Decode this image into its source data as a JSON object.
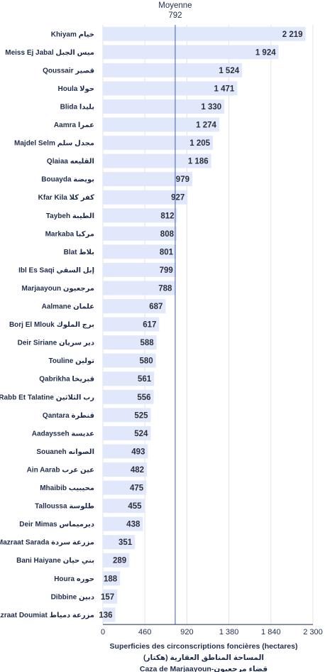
{
  "chart_data": {
    "type": "bar",
    "orientation": "horizontal",
    "categories": [
      "Khiyam خيام",
      "Meiss Ej Jabal ميس الجبل",
      "Qoussair قصير",
      "Houla حولا",
      "Blida بليدا",
      "Aamra عمرا",
      "Majdel Selm مجدل سلم",
      "Qlaiaa القليعه",
      "Bouayda بويضة",
      "Kfar Kila كفر كلا",
      "Taybeh الطيبة",
      "Markaba مركبا",
      "Blat بلاط",
      "Ibl Es Saqi إبل السقي",
      "Marjaayoun مرجعيون",
      "Aalmane علمان",
      "Borj El Mlouk برج الملوك",
      "Deir Siriane دير سريان",
      "Touline تولين",
      "Qabrikha قبريخا",
      "Rabb Et Talatine رب الثلاثين",
      "Qantara قنطرة",
      "Aadaysseh عديسة",
      "Souaneh الصوانه",
      "Ain Aarab عين عرب",
      "Mhaibib محيبيب",
      "Talloussa طلوسة",
      "Deir Mimas ديرميماس",
      "Mazraat Sarada مزرعة سردة",
      "Bani Haiyane بني حيان",
      "Houra حوره",
      "Dibbine دبين",
      "Mazraat Doumiat مزرعة دمياط"
    ],
    "values": [
      2219,
      1924,
      1524,
      1471,
      1330,
      1274,
      1205,
      1186,
      979,
      927,
      812,
      808,
      801,
      799,
      788,
      687,
      617,
      588,
      580,
      561,
      556,
      525,
      524,
      493,
      482,
      475,
      455,
      438,
      351,
      289,
      188,
      157,
      136
    ],
    "value_labels": [
      "2 219",
      "1 924",
      "1 524",
      "1 471",
      "1 330",
      "1 274",
      "1 205",
      "1 186",
      "979",
      "927",
      "812",
      "808",
      "801",
      "799",
      "788",
      "687",
      "617",
      "588",
      "580",
      "561",
      "556",
      "525",
      "524",
      "493",
      "482",
      "475",
      "455",
      "438",
      "351",
      "289",
      "188",
      "157",
      "136"
    ],
    "mean": {
      "label": "Moyenne",
      "value": 792,
      "value_label": "792"
    },
    "xlim": [
      0,
      2300
    ],
    "xticks": [
      0,
      460,
      920,
      1380,
      1840,
      2300
    ],
    "xtick_labels": [
      "0",
      "460",
      "920",
      "1 380",
      "1 840",
      "2 300"
    ],
    "xlabel_lines": [
      "Superficies des circonscriptions foncières (hectares)",
      "المساحة المناطق العقارية (هكتار)",
      "Caza de Marjaayoun-قضاء مرجعيون"
    ],
    "grid": true,
    "colors": {
      "bar": "#e2e8fb",
      "mean_line": "#3a5fa8",
      "grid": "#e3e3e3",
      "axis": "#1f2d4d"
    }
  }
}
